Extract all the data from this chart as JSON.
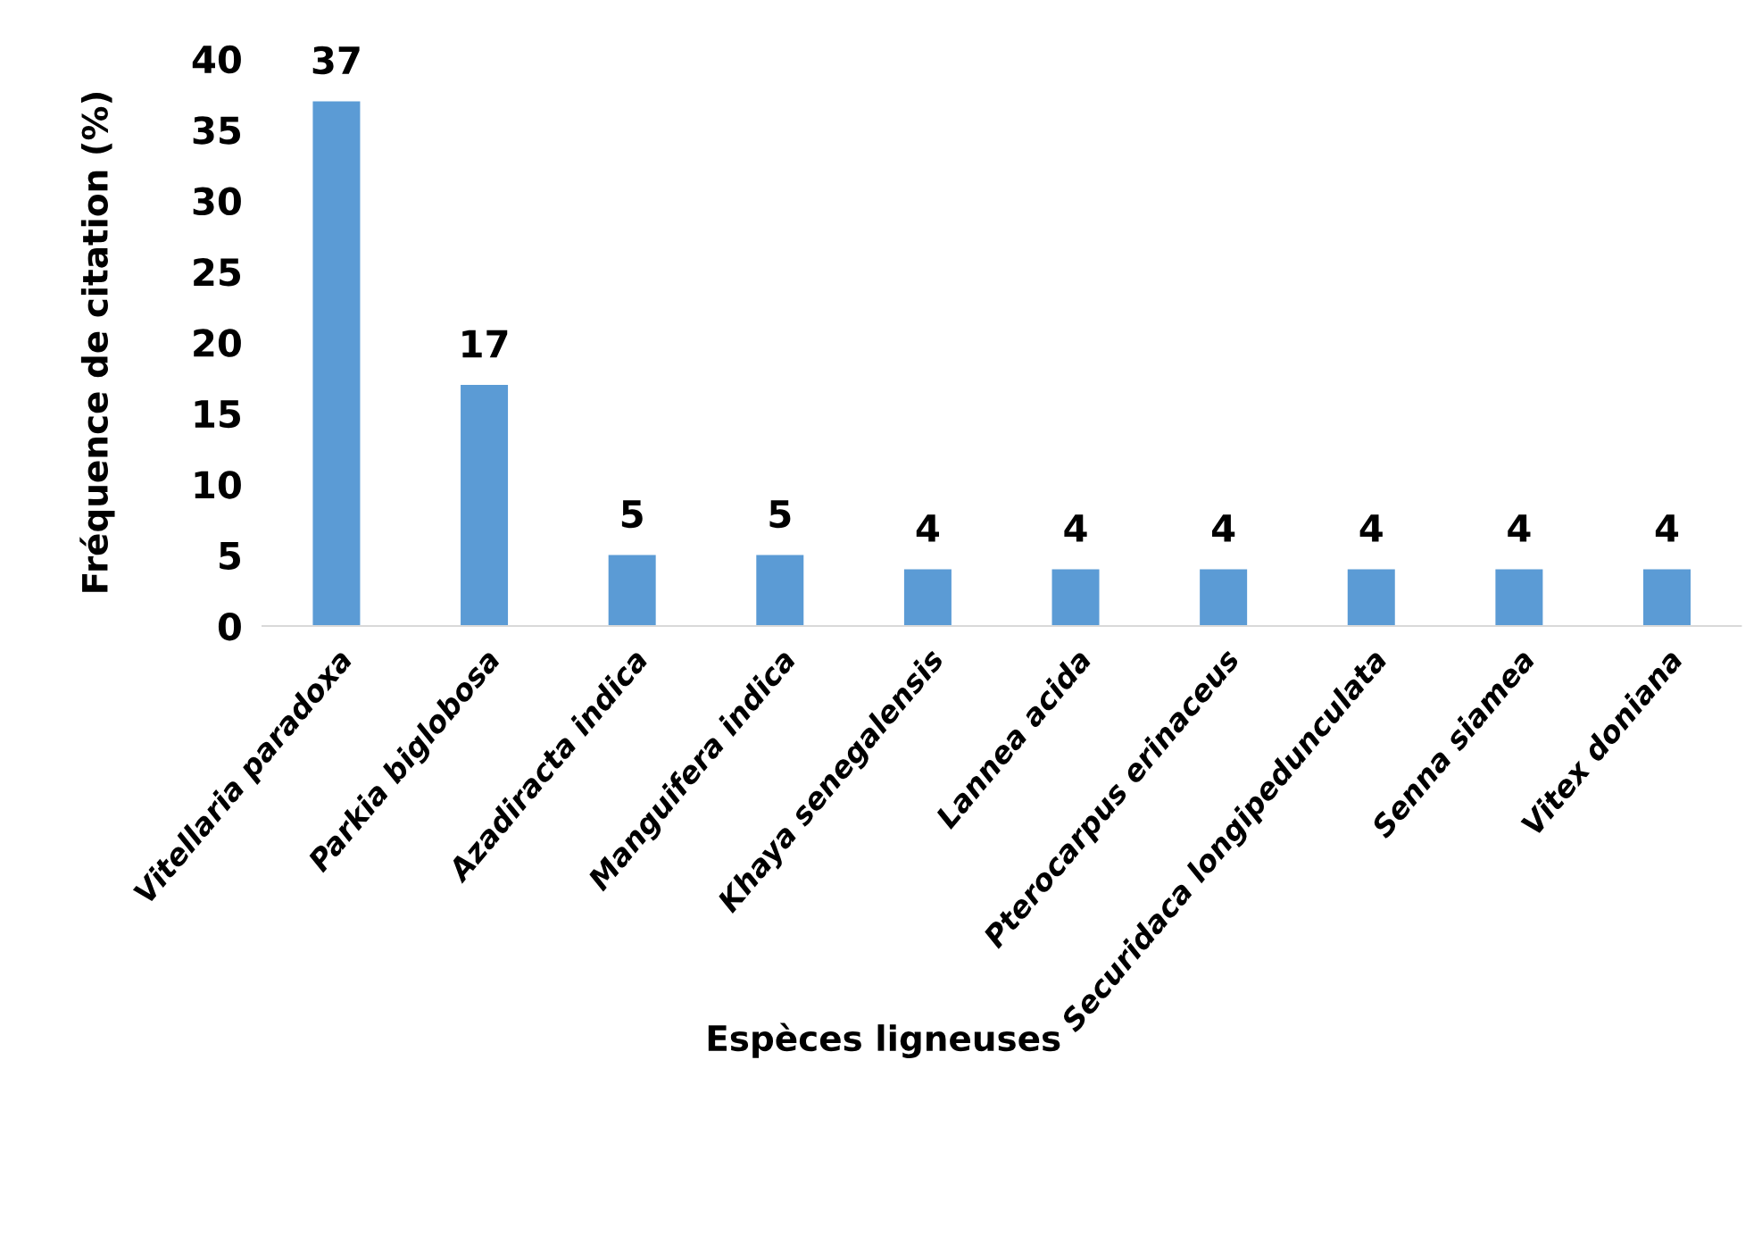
{
  "chart_data": {
    "type": "bar",
    "xlabel": "Espèces ligneuses",
    "ylabel": "Fréquence de citation (%)",
    "categories": [
      "Vitellaria paradoxa",
      "Parkia biglobosa",
      "Azadiracta indica",
      "Manguifera indica",
      "Khaya senegalensis",
      "Lannea acida",
      "Pterocarpus erinaceus",
      "Securidaca longipedunculata",
      "Senna siamea",
      "Vitex doniana"
    ],
    "values": [
      37,
      17,
      5,
      5,
      4,
      4,
      4,
      4,
      4,
      4
    ],
    "color": "#5b9bd5",
    "ylim": [
      0,
      40
    ],
    "yticks": [
      0,
      5,
      10,
      15,
      20,
      25,
      30,
      35,
      40
    ],
    "grid": false,
    "data_labels": true
  }
}
